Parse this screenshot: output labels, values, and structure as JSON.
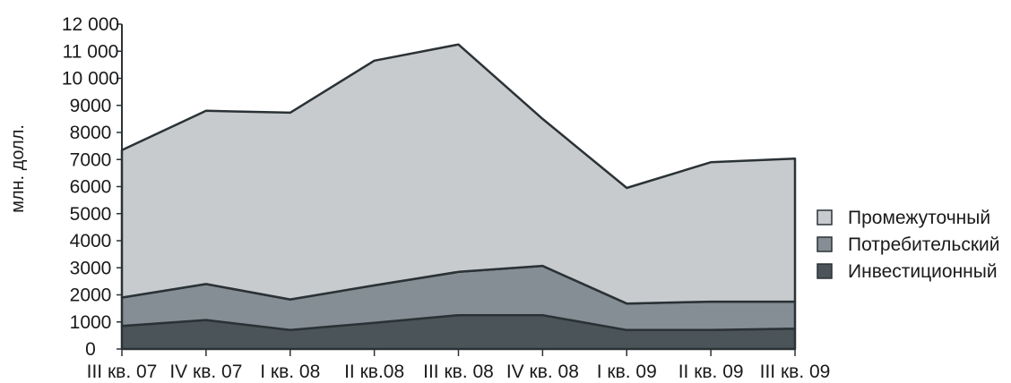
{
  "chart_data": {
    "type": "area",
    "stacked": true,
    "ylabel": "млн. долл.",
    "xlabel": "",
    "title": "",
    "ylim": [
      0,
      12000
    ],
    "yticks": [
      0,
      1000,
      2000,
      3000,
      4000,
      5000,
      6000,
      7000,
      8000,
      9000,
      10000,
      11000,
      12000
    ],
    "ytick_labels": [
      "0",
      "1000",
      "2000",
      "3000",
      "4000",
      "5000",
      "6000",
      "7000",
      "8000",
      "9000",
      "10 000",
      "11 000",
      "12 000"
    ],
    "categories": [
      "III кв. 07",
      "IV кв. 07",
      "I кв. 08",
      "II кв.08",
      "III кв. 08",
      "IV кв. 08",
      "I кв. 09",
      "II кв. 09",
      "III кв. 09"
    ],
    "series": [
      {
        "name": "Инвестиционный",
        "color": "#4b5559",
        "values": [
          850,
          1070,
          700,
          970,
          1250,
          1250,
          700,
          700,
          750
        ]
      },
      {
        "name": "Потребительский",
        "color": "#858e94",
        "values": [
          1050,
          1330,
          1130,
          1380,
          1600,
          1820,
          980,
          1050,
          1000
        ]
      },
      {
        "name": "Промежуточный",
        "color": "#c8cbce",
        "values": [
          5450,
          6400,
          6900,
          8300,
          8400,
          5430,
          4270,
          5150,
          5280
        ]
      }
    ],
    "legend_position": "right",
    "grid": false
  }
}
